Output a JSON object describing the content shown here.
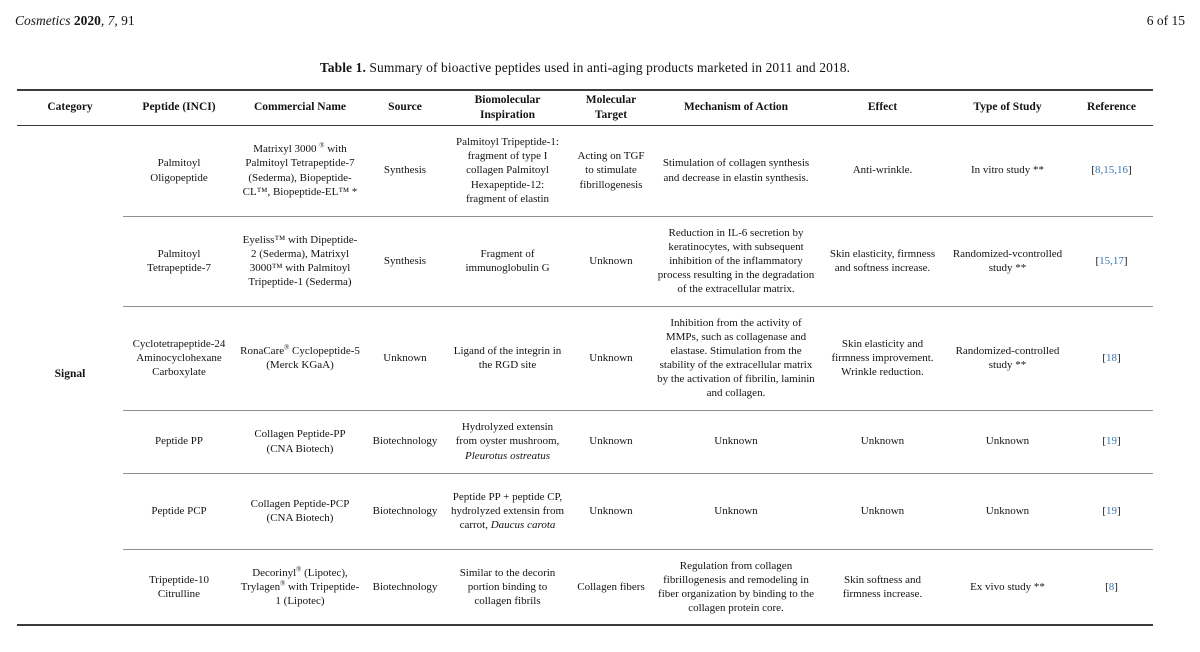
{
  "page_header": {
    "left_runs": [
      {
        "t": "Cosmetics ",
        "i": true
      },
      {
        "t": "2020",
        "b": true
      },
      {
        "t": ", "
      },
      {
        "t": "7",
        "i": true
      },
      {
        "t": ", 91"
      }
    ],
    "page_indicator": "6 of 15"
  },
  "caption_runs": [
    {
      "t": "Table 1.",
      "b": true
    },
    {
      "t": " Summary of bioactive peptides used in anti-aging products marketed in 2011 and 2018."
    }
  ],
  "colors": {
    "reference_link": "#3b76b5",
    "rule_dark": "#3c3c3c",
    "rule_light": "#8f8f8f"
  },
  "table": {
    "headers": [
      "Category",
      "Peptide (INCI)",
      "Commercial Name",
      "Source",
      "Biomolecular Inspiration",
      "Molecular Target",
      "Mechanism of Action",
      "Effect",
      "Type of Study",
      "Reference"
    ],
    "category": "Signal",
    "rows": [
      {
        "peptide": "Palmitoyl Oligopeptide",
        "commercial_runs": [
          {
            "t": "Matrixyl 3000 "
          },
          {
            "t": "®",
            "sup": true
          },
          {
            "t": " with Palmitoyl Tetrapeptide-7 (Sederma), Biopeptide-CL™, Biopeptide-EL™ *"
          }
        ],
        "source": "Synthesis",
        "inspiration_runs": [
          {
            "t": "Palmitoyl Tripeptide-1: fragment of type I collagen Palmitoyl Hexapeptide-12: fragment of elastin"
          }
        ],
        "target": "Acting on TGF to stimulate fibrillogenesis",
        "mechanism": "Stimulation of collagen synthesis and decrease in elastin synthesis.",
        "effect": "Anti-wrinkle.",
        "study": "In vitro study **",
        "reference_runs": [
          {
            "t": "["
          },
          {
            "t": "8,15,16",
            "link": true
          },
          {
            "t": "]"
          }
        ]
      },
      {
        "peptide": "Palmitoyl Tetrapeptide-7",
        "commercial_runs": [
          {
            "t": "Eyeliss™ with Dipeptide-2 (Sederma), Matrixyl 3000™ with Palmitoyl Tripeptide-1 (Sederma)"
          }
        ],
        "source": "Synthesis",
        "inspiration_runs": [
          {
            "t": "Fragment of immunoglobulin G"
          }
        ],
        "target": "Unknown",
        "mechanism": "Reduction in IL-6 secretion by keratinocytes, with subsequent inhibition of the inflammatory process resulting in the degradation of the extracellular matrix.",
        "effect": "Skin elasticity, firmness and softness increase.",
        "study": "Randomized-vcontrolled study **",
        "reference_runs": [
          {
            "t": "["
          },
          {
            "t": "15,17",
            "link": true
          },
          {
            "t": "]"
          }
        ]
      },
      {
        "peptide": "Cyclotetrapeptide-24 Aminocyclohexane Carboxylate",
        "commercial_runs": [
          {
            "t": "RonaCare"
          },
          {
            "t": "®",
            "sup": true
          },
          {
            "t": " Cyclopeptide-5 (Merck KGaA)"
          }
        ],
        "source": "Unknown",
        "inspiration_runs": [
          {
            "t": "Ligand of the integrin in the RGD site"
          }
        ],
        "target": "Unknown",
        "mechanism": "Inhibition from the activity of MMPs, such as collagenase and elastase. Stimulation from the stability of the extracellular matrix by the activation of fibrilin, laminin and collagen.",
        "effect": "Skin elasticity and firmness improvement. Wrinkle reduction.",
        "study": "Randomized-controlled study **",
        "reference_runs": [
          {
            "t": "["
          },
          {
            "t": "18",
            "link": true
          },
          {
            "t": "]"
          }
        ]
      },
      {
        "peptide": "Peptide PP",
        "commercial_runs": [
          {
            "t": "Collagen Peptide-PP (CNA Biotech)"
          }
        ],
        "source": "Biotechnology",
        "inspiration_runs": [
          {
            "t": "Hydrolyzed extensin from oyster mushroom, "
          },
          {
            "t": "Pleurotus ostreatus",
            "i": true
          }
        ],
        "target": "Unknown",
        "mechanism": "Unknown",
        "effect": "Unknown",
        "study": "Unknown",
        "reference_runs": [
          {
            "t": "["
          },
          {
            "t": "19",
            "link": true
          },
          {
            "t": "]"
          }
        ]
      },
      {
        "peptide": "Peptide PCP",
        "commercial_runs": [
          {
            "t": "Collagen Peptide-PCP (CNA Biotech)"
          }
        ],
        "source": "Biotechnology",
        "inspiration_runs": [
          {
            "t": "Peptide PP + peptide CP, hydrolyzed extensin from carrot, "
          },
          {
            "t": "Daucus carota",
            "i": true
          }
        ],
        "target": "Unknown",
        "mechanism": "Unknown",
        "effect": "Unknown",
        "study": "Unknown",
        "reference_runs": [
          {
            "t": "["
          },
          {
            "t": "19",
            "link": true
          },
          {
            "t": "]"
          }
        ]
      },
      {
        "peptide": "Tripeptide-10 Citrulline",
        "commercial_runs": [
          {
            "t": "Decorinyl"
          },
          {
            "t": "®",
            "sup": true
          },
          {
            "t": " (Lipotec), Trylagen"
          },
          {
            "t": "®",
            "sup": true
          },
          {
            "t": " with Tripeptide-1 (Lipotec)"
          }
        ],
        "source": "Biotechnology",
        "inspiration_runs": [
          {
            "t": "Similar to the decorin portion binding to collagen fibrils"
          }
        ],
        "target": "Collagen fibers",
        "mechanism": "Regulation from collagen fibrillogenesis and remodeling in fiber organization by binding to the collagen protein core.",
        "effect": "Skin softness and firmness increase.",
        "study": "Ex vivo study **",
        "reference_runs": [
          {
            "t": "["
          },
          {
            "t": "8",
            "link": true
          },
          {
            "t": "]"
          }
        ]
      }
    ]
  }
}
